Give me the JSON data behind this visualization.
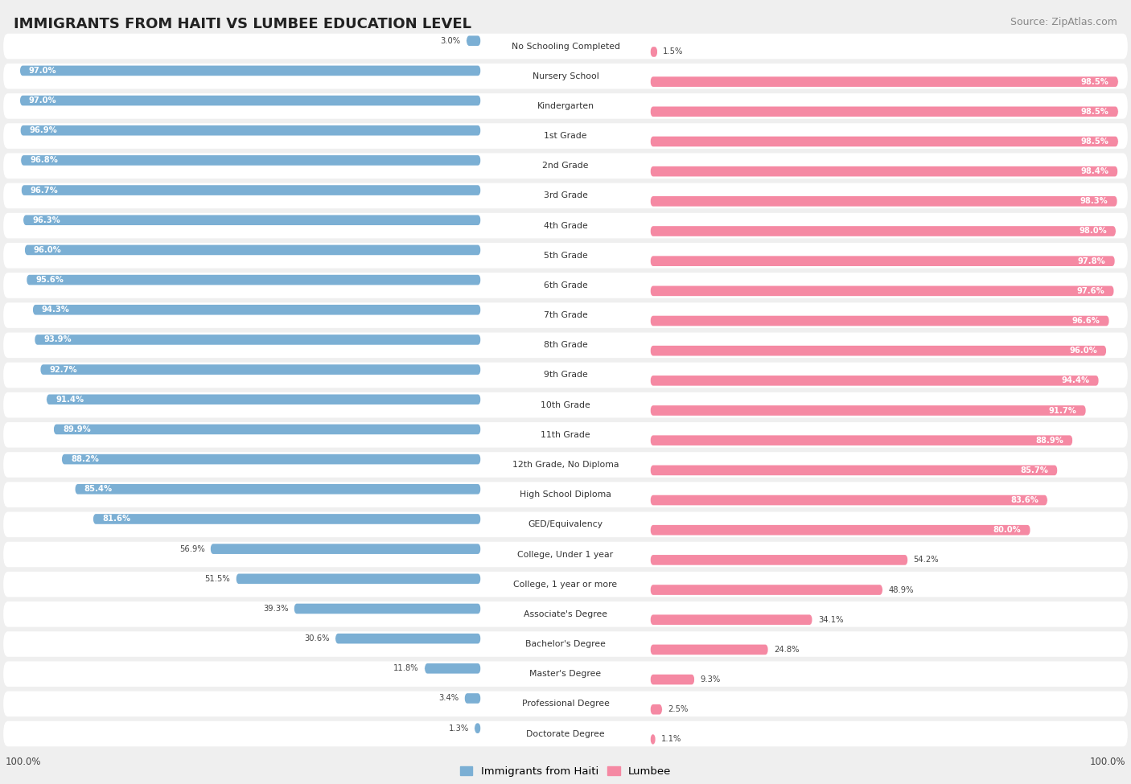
{
  "title": "IMMIGRANTS FROM HAITI VS LUMBEE EDUCATION LEVEL",
  "source": "Source: ZipAtlas.com",
  "categories": [
    "No Schooling Completed",
    "Nursery School",
    "Kindergarten",
    "1st Grade",
    "2nd Grade",
    "3rd Grade",
    "4th Grade",
    "5th Grade",
    "6th Grade",
    "7th Grade",
    "8th Grade",
    "9th Grade",
    "10th Grade",
    "11th Grade",
    "12th Grade, No Diploma",
    "High School Diploma",
    "GED/Equivalency",
    "College, Under 1 year",
    "College, 1 year or more",
    "Associate's Degree",
    "Bachelor's Degree",
    "Master's Degree",
    "Professional Degree",
    "Doctorate Degree"
  ],
  "haiti_values": [
    3.0,
    97.0,
    97.0,
    96.9,
    96.8,
    96.7,
    96.3,
    96.0,
    95.6,
    94.3,
    93.9,
    92.7,
    91.4,
    89.9,
    88.2,
    85.4,
    81.6,
    56.9,
    51.5,
    39.3,
    30.6,
    11.8,
    3.4,
    1.3
  ],
  "lumbee_values": [
    1.5,
    98.5,
    98.5,
    98.5,
    98.4,
    98.3,
    98.0,
    97.8,
    97.6,
    96.6,
    96.0,
    94.4,
    91.7,
    88.9,
    85.7,
    83.6,
    80.0,
    54.2,
    48.9,
    34.1,
    24.8,
    9.3,
    2.5,
    1.1
  ],
  "haiti_color": "#7bafd4",
  "lumbee_color": "#f589a3",
  "background_color": "#efefef",
  "row_bg_color": "#ffffff",
  "figsize": [
    14.06,
    9.75
  ],
  "dpi": 100,
  "haiti_threshold": 80,
  "lumbee_threshold": 80
}
